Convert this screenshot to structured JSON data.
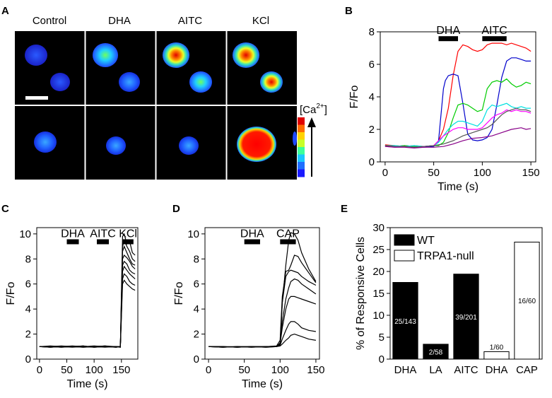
{
  "panels": {
    "A": {
      "label": "A",
      "headers": [
        "Control",
        "DHA",
        "AITC",
        "KCl"
      ],
      "colorbar_label": "[Ca",
      "colorbar_sup": "2+",
      "colorbar_close": "]",
      "colorbar_colors": [
        "#1a1aff",
        "#1f6fff",
        "#19c8ff",
        "#3cff9a",
        "#c8ff28",
        "#ffd200",
        "#ff6a00",
        "#e00000"
      ]
    },
    "B": {
      "label": "B"
    },
    "C": {
      "label": "C"
    },
    "D": {
      "label": "D"
    },
    "E": {
      "label": "E"
    }
  },
  "chart_data": [
    {
      "id": "B",
      "type": "line",
      "xlabel": "Time (s)",
      "ylabel": "F/Fo",
      "xlim": [
        -5,
        155
      ],
      "ylim": [
        0,
        8
      ],
      "xticks": [
        0,
        50,
        100,
        150
      ],
      "yticks": [
        0,
        2,
        4,
        6,
        8
      ],
      "bars": [
        {
          "label": "DHA",
          "x0": 55,
          "x1": 75,
          "y": 7.6
        },
        {
          "label": "AITC",
          "x0": 100,
          "x1": 125,
          "y": 7.6
        }
      ],
      "series": [
        {
          "color": "#ff0000",
          "x": [
            0,
            10,
            20,
            30,
            40,
            50,
            55,
            60,
            65,
            70,
            75,
            80,
            85,
            90,
            95,
            100,
            105,
            110,
            115,
            120,
            125,
            130,
            135,
            140,
            145,
            150
          ],
          "y": [
            1.05,
            1.0,
            0.95,
            1.0,
            0.95,
            1.0,
            1.3,
            2.0,
            3.3,
            5.3,
            6.8,
            7.2,
            7.1,
            6.9,
            6.8,
            6.9,
            7.2,
            7.3,
            7.3,
            7.3,
            7.2,
            7.3,
            7.2,
            7.1,
            7.0,
            6.8
          ]
        },
        {
          "color": "#0000cc",
          "x": [
            0,
            10,
            20,
            30,
            40,
            50,
            55,
            60,
            62,
            65,
            70,
            75,
            80,
            85,
            90,
            95,
            100,
            105,
            110,
            115,
            120,
            125,
            130,
            135,
            140,
            145,
            150
          ],
          "y": [
            1.0,
            0.95,
            1.0,
            0.95,
            0.9,
            0.95,
            1.3,
            4.5,
            5.0,
            5.3,
            5.4,
            5.3,
            3.6,
            1.7,
            1.35,
            1.3,
            1.35,
            1.5,
            2.0,
            3.5,
            5.2,
            6.2,
            6.4,
            6.4,
            6.3,
            6.2,
            6.2
          ]
        },
        {
          "color": "#00cc00",
          "x": [
            0,
            10,
            20,
            30,
            40,
            50,
            55,
            60,
            65,
            70,
            75,
            80,
            85,
            90,
            95,
            100,
            105,
            110,
            115,
            120,
            125,
            130,
            135,
            140,
            145,
            150
          ],
          "y": [
            1.0,
            0.95,
            1.0,
            0.95,
            0.95,
            1.0,
            1.0,
            1.2,
            1.8,
            2.7,
            3.5,
            3.6,
            3.5,
            3.3,
            3.1,
            3.2,
            4.5,
            4.9,
            5.0,
            4.9,
            5.1,
            4.8,
            4.6,
            4.7,
            4.9,
            4.8
          ]
        },
        {
          "color": "#00e0e0",
          "x": [
            0,
            10,
            20,
            30,
            40,
            50,
            55,
            60,
            65,
            70,
            75,
            80,
            85,
            90,
            95,
            100,
            105,
            110,
            115,
            120,
            125,
            130,
            135,
            140,
            145,
            150
          ],
          "y": [
            1.0,
            1.0,
            0.95,
            1.0,
            0.95,
            1.0,
            1.2,
            1.6,
            2.0,
            2.3,
            2.5,
            2.5,
            2.4,
            2.3,
            2.2,
            2.5,
            3.2,
            3.5,
            3.4,
            3.5,
            3.6,
            3.4,
            3.3,
            3.4,
            3.3,
            3.3
          ]
        },
        {
          "color": "#ff00ff",
          "x": [
            0,
            10,
            20,
            30,
            40,
            50,
            55,
            60,
            65,
            70,
            75,
            80,
            85,
            90,
            95,
            100,
            105,
            110,
            115,
            120,
            125,
            130,
            135,
            140,
            145,
            150
          ],
          "y": [
            0.95,
            0.9,
            0.95,
            0.9,
            0.95,
            1.0,
            1.3,
            1.6,
            1.8,
            2.0,
            2.1,
            2.1,
            2.0,
            2.0,
            2.0,
            2.1,
            2.4,
            2.7,
            2.9,
            3.0,
            3.2,
            3.1,
            3.2,
            3.1,
            3.1,
            3.0
          ]
        },
        {
          "color": "#555555",
          "x": [
            0,
            10,
            20,
            30,
            40,
            50,
            60,
            70,
            80,
            90,
            100,
            105,
            110,
            115,
            120,
            125,
            130,
            135,
            140,
            145,
            150
          ],
          "y": [
            1.0,
            0.95,
            0.95,
            0.9,
            0.95,
            1.0,
            1.1,
            1.3,
            1.6,
            1.8,
            2.0,
            2.1,
            2.3,
            2.6,
            2.9,
            3.1,
            3.2,
            3.3,
            3.2,
            3.2,
            3.1
          ]
        },
        {
          "color": "#880088",
          "x": [
            0,
            10,
            20,
            30,
            40,
            50,
            60,
            70,
            80,
            90,
            100,
            110,
            120,
            130,
            140,
            145,
            150
          ],
          "y": [
            0.95,
            0.9,
            0.9,
            0.85,
            0.9,
            0.9,
            0.95,
            1.1,
            1.3,
            1.45,
            1.5,
            1.6,
            1.8,
            2.0,
            2.1,
            2.0,
            2.05
          ]
        }
      ]
    },
    {
      "id": "C",
      "type": "line",
      "xlabel": "Time (s)",
      "ylabel": "F/Fo",
      "xlim": [
        -5,
        180
      ],
      "ylim": [
        0,
        10.5
      ],
      "xticks": [
        0,
        50,
        100,
        150
      ],
      "yticks": [
        0,
        2,
        4,
        6,
        8,
        10
      ],
      "bars": [
        {
          "label": "DHA",
          "x0": 50,
          "x1": 72,
          "y": 9.4
        },
        {
          "label": "AITC",
          "x0": 105,
          "x1": 127,
          "y": 9.4
        },
        {
          "label": "KCl",
          "x0": 152,
          "x1": 172,
          "y": 9.4
        }
      ],
      "series": [
        {
          "color": "#000000",
          "x": [
            0,
            20,
            40,
            60,
            80,
            100,
            120,
            140,
            148,
            152,
            155,
            160,
            165,
            170,
            175
          ],
          "y": [
            1.0,
            1.0,
            1.05,
            1.0,
            1.05,
            0.95,
            1.0,
            0.95,
            1.0,
            9.8,
            10.0,
            9.2,
            9.4,
            8.5,
            8.3
          ]
        },
        {
          "color": "#000000",
          "x": [
            0,
            20,
            40,
            60,
            80,
            100,
            120,
            140,
            148,
            152,
            155,
            160,
            165,
            170,
            175
          ],
          "y": [
            1.0,
            0.95,
            1.0,
            1.0,
            0.95,
            1.0,
            0.95,
            1.0,
            0.95,
            9.0,
            9.5,
            9.0,
            8.6,
            8.0,
            7.8
          ]
        },
        {
          "color": "#000000",
          "x": [
            0,
            20,
            40,
            60,
            80,
            100,
            120,
            140,
            148,
            152,
            155,
            160,
            165,
            170,
            175
          ],
          "y": [
            1.0,
            1.0,
            0.95,
            1.0,
            1.0,
            1.05,
            1.0,
            1.0,
            1.0,
            8.6,
            9.0,
            8.5,
            8.0,
            7.6,
            7.5
          ]
        },
        {
          "color": "#000000",
          "x": [
            0,
            20,
            40,
            60,
            80,
            100,
            120,
            140,
            148,
            152,
            155,
            160,
            165,
            170,
            175
          ],
          "y": [
            1.0,
            1.05,
            1.0,
            0.95,
            1.0,
            1.0,
            1.05,
            0.95,
            1.0,
            8.0,
            8.3,
            8.1,
            7.8,
            7.4,
            7.2
          ]
        },
        {
          "color": "#000000",
          "x": [
            0,
            20,
            40,
            60,
            80,
            100,
            120,
            140,
            148,
            152,
            155,
            160,
            165,
            170,
            175
          ],
          "y": [
            1.0,
            0.95,
            1.0,
            1.0,
            1.05,
            0.95,
            1.0,
            1.0,
            1.0,
            7.5,
            7.8,
            7.6,
            7.1,
            6.9,
            6.8
          ]
        },
        {
          "color": "#000000",
          "x": [
            0,
            20,
            40,
            60,
            80,
            100,
            120,
            140,
            148,
            152,
            155,
            160,
            165,
            170,
            175
          ],
          "y": [
            1.0,
            1.0,
            1.0,
            1.05,
            1.0,
            1.0,
            1.0,
            0.95,
            1.0,
            7.0,
            7.4,
            7.1,
            6.8,
            6.6,
            6.4
          ]
        },
        {
          "color": "#000000",
          "x": [
            0,
            20,
            40,
            60,
            80,
            100,
            120,
            140,
            148,
            152,
            155,
            160,
            165,
            170,
            175
          ],
          "y": [
            1.0,
            1.0,
            0.95,
            1.0,
            1.0,
            0.95,
            1.0,
            1.0,
            0.95,
            6.4,
            6.8,
            6.6,
            6.2,
            6.0,
            5.9
          ]
        },
        {
          "color": "#000000",
          "x": [
            0,
            20,
            40,
            60,
            80,
            100,
            120,
            140,
            148,
            152,
            155,
            160,
            165,
            170,
            175
          ],
          "y": [
            1.0,
            0.95,
            1.0,
            1.0,
            0.95,
            1.0,
            1.05,
            1.0,
            1.0,
            6.0,
            6.3,
            6.0,
            5.8,
            5.6,
            5.5
          ]
        }
      ]
    },
    {
      "id": "D",
      "type": "line",
      "xlabel": "Time (s)",
      "ylabel": "F/Fo",
      "xlim": [
        -5,
        155
      ],
      "ylim": [
        0,
        10.5
      ],
      "xticks": [
        0,
        50,
        100,
        150
      ],
      "yticks": [
        0,
        2,
        4,
        6,
        8,
        10
      ],
      "bars": [
        {
          "label": "DHA",
          "x0": 50,
          "x1": 72,
          "y": 9.4
        },
        {
          "label": "CAP",
          "x0": 100,
          "x1": 122,
          "y": 9.4
        }
      ],
      "series": [
        {
          "color": "#000000",
          "x": [
            0,
            20,
            40,
            60,
            80,
            95,
            100,
            103,
            108,
            112,
            115,
            120,
            125,
            130,
            140,
            150
          ],
          "y": [
            1.0,
            1.0,
            0.95,
            1.0,
            1.0,
            1.0,
            1.2,
            4.5,
            7.5,
            9.5,
            10.1,
            10.0,
            9.5,
            8.5,
            7.2,
            6.2
          ]
        },
        {
          "color": "#000000",
          "x": [
            0,
            20,
            40,
            60,
            80,
            95,
            100,
            103,
            108,
            112,
            115,
            120,
            125,
            130,
            140,
            150
          ],
          "y": [
            1.0,
            0.95,
            1.0,
            0.95,
            1.0,
            1.05,
            1.5,
            5.0,
            7.0,
            7.1,
            7.5,
            8.3,
            8.2,
            7.7,
            6.9,
            6.1
          ]
        },
        {
          "color": "#000000",
          "x": [
            0,
            20,
            40,
            60,
            80,
            95,
            100,
            103,
            108,
            112,
            115,
            120,
            125,
            130,
            140,
            150
          ],
          "y": [
            1.0,
            1.0,
            0.95,
            1.0,
            1.0,
            1.0,
            1.3,
            4.5,
            6.6,
            7.0,
            7.1,
            7.0,
            6.9,
            6.6,
            6.2,
            5.9
          ]
        },
        {
          "color": "#000000",
          "x": [
            0,
            20,
            40,
            60,
            80,
            95,
            100,
            103,
            108,
            112,
            115,
            120,
            125,
            130,
            140,
            150
          ],
          "y": [
            1.0,
            1.0,
            1.0,
            0.95,
            1.0,
            1.0,
            1.1,
            3.0,
            4.8,
            5.7,
            6.2,
            6.4,
            6.3,
            6.0,
            5.6,
            5.2
          ]
        },
        {
          "color": "#000000",
          "x": [
            0,
            20,
            40,
            60,
            80,
            95,
            100,
            103,
            108,
            112,
            115,
            120,
            125,
            130,
            140,
            150
          ],
          "y": [
            1.0,
            0.95,
            1.0,
            1.0,
            0.95,
            1.0,
            1.2,
            2.5,
            4.0,
            4.8,
            5.0,
            5.0,
            4.9,
            4.8,
            4.6,
            4.4
          ]
        },
        {
          "color": "#000000",
          "x": [
            0,
            20,
            40,
            60,
            80,
            95,
            100,
            103,
            108,
            112,
            115,
            120,
            125,
            130,
            140,
            150
          ],
          "y": [
            1.0,
            1.0,
            0.95,
            1.0,
            1.0,
            1.0,
            1.1,
            1.6,
            2.3,
            2.8,
            3.0,
            3.0,
            2.8,
            2.5,
            2.3,
            2.2
          ]
        },
        {
          "color": "#000000",
          "x": [
            0,
            20,
            40,
            60,
            80,
            95,
            100,
            103,
            108,
            112,
            115,
            120,
            125,
            130,
            140,
            150
          ],
          "y": [
            1.0,
            0.95,
            1.0,
            1.0,
            0.95,
            1.0,
            1.05,
            1.2,
            1.5,
            1.7,
            1.9,
            2.0,
            1.9,
            1.8,
            1.6,
            1.5
          ]
        }
      ]
    },
    {
      "id": "E",
      "type": "bar",
      "ylabel": "% of Responsive Cells",
      "ylim": [
        0,
        30
      ],
      "yticks": [
        0,
        5,
        10,
        15,
        20,
        25,
        30
      ],
      "categories": [
        "DHA",
        "LA",
        "AITC",
        "DHA",
        "CAP"
      ],
      "values": [
        17.5,
        3.4,
        19.4,
        1.7,
        26.7
      ],
      "bar_labels": [
        "25/143",
        "2/58",
        "39/201",
        "1/60",
        "16/60"
      ],
      "groups": [
        "WT",
        "WT",
        "WT",
        "TRPA1-null",
        "TRPA1-null"
      ],
      "legend": [
        {
          "label": "WT",
          "fill": "#000000"
        },
        {
          "label": "TRPA1-null",
          "fill": "#ffffff"
        }
      ]
    }
  ]
}
